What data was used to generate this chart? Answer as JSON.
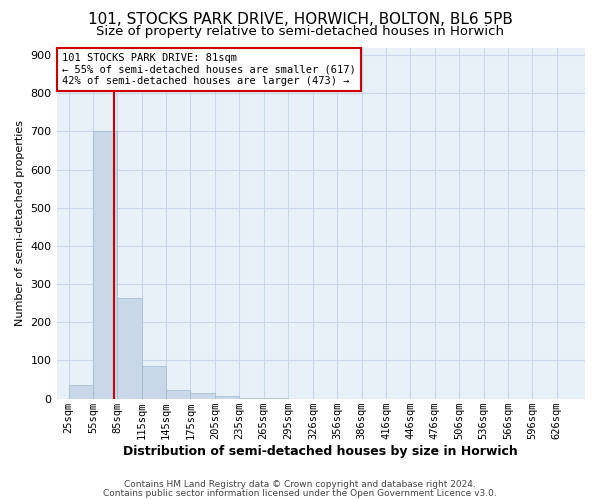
{
  "title1": "101, STOCKS PARK DRIVE, HORWICH, BOLTON, BL6 5PB",
  "title2": "Size of property relative to semi-detached houses in Horwich",
  "xlabel": "Distribution of semi-detached houses by size in Horwich",
  "ylabel": "Number of semi-detached properties",
  "annotation_line1": "101 STOCKS PARK DRIVE: 81sqm",
  "annotation_line2": "← 55% of semi-detached houses are smaller (617)",
  "annotation_line3": "42% of semi-detached houses are larger (473) →",
  "footer1": "Contains HM Land Registry data © Crown copyright and database right 2024.",
  "footer2": "Contains public sector information licensed under the Open Government Licence v3.0.",
  "bar_color": "#c8d8e8",
  "bar_edge_color": "#a0b8cc",
  "grid_color": "#c8d8e8",
  "red_line_color": "#cc0000",
  "annotation_box_color": "#cc0000",
  "background_color": "#ffffff",
  "ax_background": "#e8f0f8",
  "property_line_x": 81,
  "bins_left_edges": [
    25,
    55,
    85,
    115,
    145,
    175,
    205,
    235,
    265,
    295,
    326,
    356,
    386,
    416,
    446,
    476,
    506,
    536,
    566,
    596,
    626
  ],
  "bin_width": 30,
  "bar_heights": [
    35,
    700,
    265,
    85,
    22,
    15,
    8,
    3,
    1,
    0,
    0,
    0,
    0,
    0,
    0,
    0,
    0,
    0,
    0,
    0,
    0
  ],
  "ylim": [
    0,
    920
  ],
  "yticks": [
    0,
    100,
    200,
    300,
    400,
    500,
    600,
    700,
    800,
    900
  ],
  "xlim_left": 10,
  "xlim_right": 661,
  "title1_fontsize": 11,
  "title2_fontsize": 9.5,
  "ylabel_fontsize": 8,
  "xlabel_fontsize": 9,
  "tick_fontsize": 7.5,
  "ytick_fontsize": 8
}
